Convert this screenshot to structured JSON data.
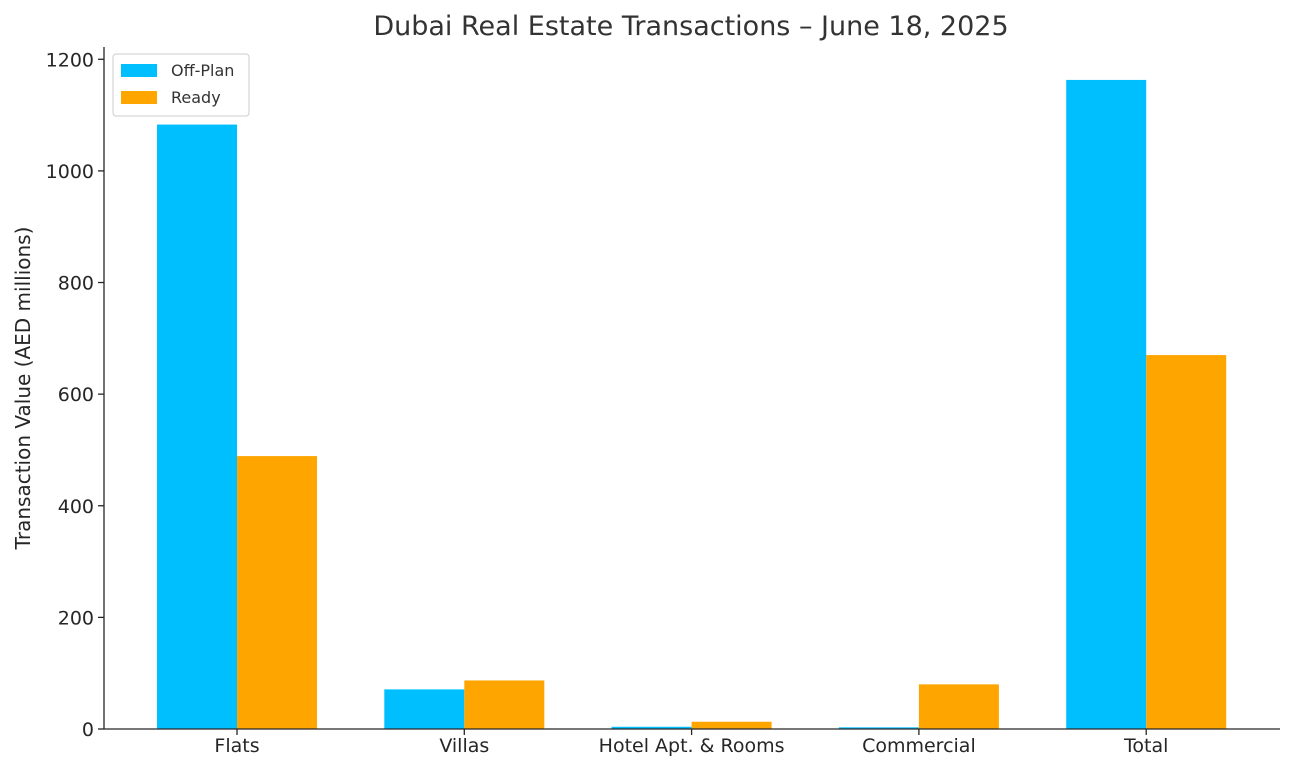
{
  "chart_data": {
    "type": "bar",
    "title": "Dubai Real Estate Transactions – June 18, 2025",
    "xlabel": "",
    "ylabel": "Transaction Value (AED millions)",
    "categories": [
      "Flats",
      "Villas",
      "Hotel Apt. & Rooms",
      "Commercial",
      "Total"
    ],
    "series": [
      {
        "name": "Off-Plan",
        "color": "#00BFFF",
        "values": [
          1083,
          71,
          4,
          3,
          1163
        ]
      },
      {
        "name": "Ready",
        "color": "#FFA500",
        "values": [
          489,
          87,
          13,
          80,
          670
        ]
      }
    ],
    "ylim": [
      0,
      1222
    ],
    "yticks": [
      0,
      200,
      400,
      600,
      800,
      1000,
      1200
    ],
    "grid": false,
    "legend_position": "top-left"
  }
}
